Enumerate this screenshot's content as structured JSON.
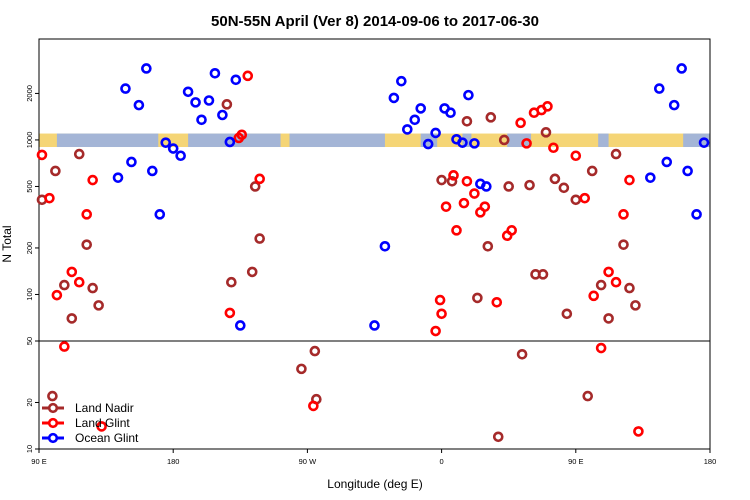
{
  "chart_data": {
    "type": "scatter",
    "title": "50N-55N April (Ver 8)   2014-09-06 to 2017-06-30",
    "xlabel": "Longitude (deg E)",
    "ylabel": "N Total",
    "x_scale": "linear",
    "y_scale": "log",
    "xlim": [
      90,
      540
    ],
    "ylim": [
      10,
      4500
    ],
    "x_ticks": [
      {
        "value": 90,
        "label": "90 E"
      },
      {
        "value": 180,
        "label": "180"
      },
      {
        "value": 270,
        "label": "90 W"
      },
      {
        "value": 360,
        "label": "0"
      },
      {
        "value": 450,
        "label": "90 E"
      },
      {
        "value": 540,
        "label": "180"
      }
    ],
    "y_ticks": [
      {
        "value": 10,
        "label": "10"
      },
      {
        "value": 20,
        "label": "20"
      },
      {
        "value": 50,
        "label": "50"
      },
      {
        "value": 100,
        "label": "100"
      },
      {
        "value": 200,
        "label": "200"
      },
      {
        "value": 500,
        "label": "500"
      },
      {
        "value": 1000,
        "label": "1000"
      },
      {
        "value": 2000,
        "label": "2000"
      }
    ],
    "reference_line_y": 50,
    "map_strip": {
      "y_low": 900,
      "y_high": 1100,
      "land_color": "#f5d576",
      "ocean_color": "#a4b5d6"
    },
    "legend": {
      "position": "bottom-left"
    },
    "series": [
      {
        "name": "Land Nadir",
        "color": "#a52a2a",
        "points": [
          [
            92,
            410
          ],
          [
            99,
            22
          ],
          [
            101,
            630
          ],
          [
            107,
            115
          ],
          [
            112,
            70
          ],
          [
            117,
            810
          ],
          [
            122,
            210
          ],
          [
            126,
            110
          ],
          [
            130,
            85
          ],
          [
            216,
            1700
          ],
          [
            219,
            120
          ],
          [
            233,
            140
          ],
          [
            235,
            500
          ],
          [
            238,
            230
          ],
          [
            266,
            33
          ],
          [
            275,
            43
          ],
          [
            276,
            21
          ],
          [
            360,
            550
          ],
          [
            367,
            540
          ],
          [
            377,
            1320
          ],
          [
            384,
            95
          ],
          [
            391,
            205
          ],
          [
            393,
            1400
          ],
          [
            398,
            12
          ],
          [
            402,
            1000
          ],
          [
            405,
            500
          ],
          [
            414,
            41
          ],
          [
            419,
            510
          ],
          [
            423,
            135
          ],
          [
            428,
            135
          ],
          [
            430,
            1120
          ],
          [
            436,
            560
          ],
          [
            442,
            490
          ],
          [
            444,
            75
          ],
          [
            450,
            410
          ],
          [
            458,
            22
          ],
          [
            461,
            630
          ],
          [
            467,
            115
          ],
          [
            472,
            70
          ],
          [
            477,
            810
          ],
          [
            482,
            210
          ],
          [
            486,
            110
          ],
          [
            490,
            85
          ]
        ]
      },
      {
        "name": "Land Glint",
        "color": "#ff0000",
        "points": [
          [
            92,
            800
          ],
          [
            97,
            420
          ],
          [
            102,
            99
          ],
          [
            107,
            46
          ],
          [
            112,
            140
          ],
          [
            117,
            120
          ],
          [
            122,
            330
          ],
          [
            126,
            550
          ],
          [
            132,
            14
          ],
          [
            218,
            76
          ],
          [
            224,
            1030
          ],
          [
            226,
            1080
          ],
          [
            230,
            2600
          ],
          [
            238,
            560
          ],
          [
            274,
            19
          ],
          [
            356,
            58
          ],
          [
            359,
            92
          ],
          [
            360,
            75
          ],
          [
            363,
            370
          ],
          [
            368,
            590
          ],
          [
            370,
            260
          ],
          [
            375,
            390
          ],
          [
            377,
            540
          ],
          [
            382,
            450
          ],
          [
            386,
            340
          ],
          [
            389,
            370
          ],
          [
            397,
            89
          ],
          [
            404,
            240
          ],
          [
            407,
            260
          ],
          [
            413,
            1290
          ],
          [
            417,
            950
          ],
          [
            422,
            1500
          ],
          [
            427,
            1560
          ],
          [
            431,
            1650
          ],
          [
            435,
            890
          ],
          [
            450,
            790
          ],
          [
            456,
            420
          ],
          [
            462,
            98
          ],
          [
            467,
            45
          ],
          [
            472,
            140
          ],
          [
            477,
            120
          ],
          [
            482,
            330
          ],
          [
            486,
            550
          ],
          [
            492,
            13
          ]
        ]
      },
      {
        "name": "Ocean Glint",
        "color": "#0000ff",
        "points": [
          [
            143,
            570
          ],
          [
            148,
            2150
          ],
          [
            152,
            720
          ],
          [
            157,
            1680
          ],
          [
            162,
            2900
          ],
          [
            166,
            630
          ],
          [
            171,
            330
          ],
          [
            175,
            960
          ],
          [
            180,
            880
          ],
          [
            185,
            790
          ],
          [
            190,
            2050
          ],
          [
            195,
            1750
          ],
          [
            199,
            1350
          ],
          [
            204,
            1800
          ],
          [
            208,
            2700
          ],
          [
            213,
            1450
          ],
          [
            218,
            970
          ],
          [
            222,
            2450
          ],
          [
            225,
            63
          ],
          [
            315,
            63
          ],
          [
            322,
            205
          ],
          [
            328,
            1870
          ],
          [
            333,
            2400
          ],
          [
            337,
            1170
          ],
          [
            342,
            1350
          ],
          [
            346,
            1600
          ],
          [
            351,
            940
          ],
          [
            356,
            1110
          ],
          [
            362,
            1600
          ],
          [
            366,
            1500
          ],
          [
            370,
            1010
          ],
          [
            374,
            960
          ],
          [
            378,
            1950
          ],
          [
            382,
            950
          ],
          [
            386,
            520
          ],
          [
            390,
            500
          ],
          [
            500,
            570
          ],
          [
            506,
            2150
          ],
          [
            511,
            720
          ],
          [
            516,
            1680
          ],
          [
            521,
            2900
          ],
          [
            525,
            630
          ],
          [
            531,
            330
          ],
          [
            536,
            960
          ]
        ]
      }
    ]
  }
}
